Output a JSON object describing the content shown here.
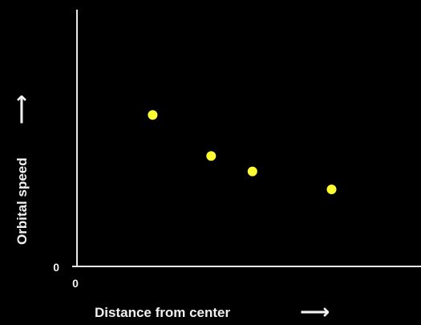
{
  "chart_data": {
    "type": "scatter",
    "xlabel": "Distance from center",
    "ylabel": "Orbital speed",
    "x_tick_labels": [
      "0"
    ],
    "y_tick_labels": [
      "0"
    ],
    "x_arrow": "⟶",
    "y_arrow": "⟶",
    "xlim": [
      0,
      10
    ],
    "ylim": [
      0,
      10
    ],
    "grid": false,
    "series": [
      {
        "color": "#ffff33",
        "points": [
          {
            "x": 2.2,
            "y": 5.9
          },
          {
            "x": 3.9,
            "y": 4.3
          },
          {
            "x": 5.1,
            "y": 3.7
          },
          {
            "x": 7.4,
            "y": 3.0
          }
        ]
      }
    ],
    "colors": {
      "background": "#000000",
      "axis": "#e8e8e8",
      "text": "#f0f0f0",
      "point": "#ffff33"
    }
  }
}
